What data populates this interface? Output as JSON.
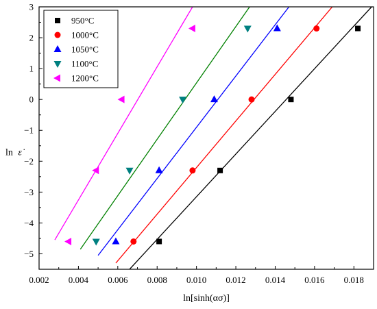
{
  "chart_data": {
    "type": "scatter",
    "title": "",
    "xlabel": "ln[sinh(ασ)]",
    "ylabel": "ln ε̇",
    "ylabel_main": "ln",
    "ylabel_symbol": "ε̇",
    "xlim": [
      0.002,
      0.019
    ],
    "ylim": [
      -5.5,
      3
    ],
    "xticks": [
      0.002,
      0.004,
      0.006,
      0.008,
      0.01,
      0.012,
      0.014,
      0.016,
      0.018
    ],
    "xtick_labels": [
      "0.002",
      "0.004",
      "0.006",
      "0.008",
      "0.010",
      "0.012",
      "0.014",
      "0.016",
      "0.018"
    ],
    "yticks": [
      -5,
      -4,
      -3,
      -2,
      -1,
      0,
      1,
      2,
      3
    ],
    "ytick_labels": [
      "−5",
      "−4",
      "−3",
      "−2",
      "−1",
      "0",
      "1",
      "2",
      "3"
    ],
    "grid": false,
    "legend_position": "top-left",
    "series": [
      {
        "name": "950°C",
        "color": "#000000",
        "marker": "square",
        "x": [
          0.0081,
          0.0112,
          0.0148,
          0.0182
        ],
        "y": [
          -4.6,
          -2.3,
          0,
          2.3
        ],
        "fit_line": [
          [
            0.0066,
            -5.5
          ],
          [
            0.0189,
            3
          ]
        ]
      },
      {
        "name": "1000°C",
        "color": "#ff0000",
        "marker": "circle",
        "x": [
          0.0068,
          0.0098,
          0.0128,
          0.0161
        ],
        "y": [
          -4.6,
          -2.3,
          0,
          2.3
        ],
        "fit_line": [
          [
            0.0059,
            -5.3
          ],
          [
            0.0169,
            3
          ]
        ]
      },
      {
        "name": "1050°C",
        "color": "#0000ff",
        "marker": "triangle-up",
        "x": [
          0.0059,
          0.0081,
          0.0109,
          0.0141
        ],
        "y": [
          -4.6,
          -2.3,
          0,
          2.3
        ],
        "fit_line": [
          [
            0.005,
            -5.05
          ],
          [
            0.0147,
            3
          ]
        ]
      },
      {
        "name": "1100°C",
        "color": "#008080",
        "marker": "triangle-down",
        "x": [
          0.0049,
          0.0066,
          0.0093,
          0.0126
        ],
        "y": [
          -4.6,
          -2.3,
          0,
          2.3
        ],
        "fit_line": [
          [
            0.0041,
            -4.85
          ],
          [
            0.0127,
            3
          ]
        ]
      },
      {
        "name": "1200°C",
        "color": "#ff00ff",
        "marker": "triangle-left",
        "x": [
          0.0035,
          0.0049,
          0.0062,
          0.0098
        ],
        "y": [
          -4.6,
          -2.3,
          0,
          2.3
        ],
        "fit_line": [
          [
            0.0028,
            -4.55
          ],
          [
            0.0098,
            3
          ]
        ]
      }
    ],
    "fit_colors": [
      "#000000",
      "#ff0000",
      "#0000ff",
      "#008000",
      "#ff00ff"
    ]
  }
}
